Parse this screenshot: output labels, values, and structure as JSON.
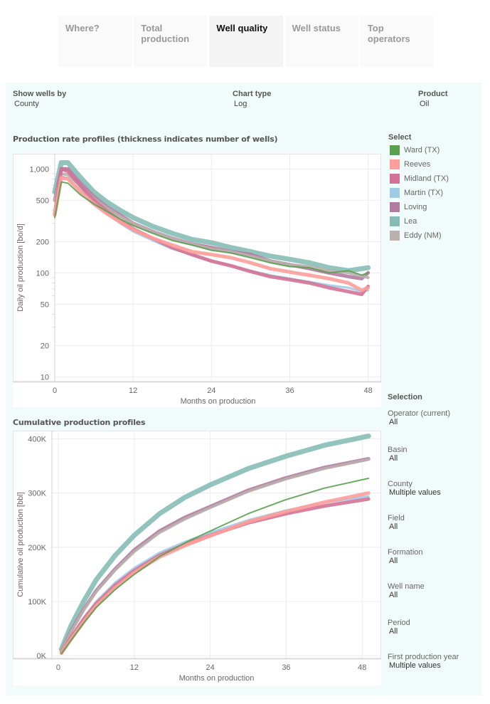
{
  "tabs": [
    {
      "label": "Where?",
      "active": false
    },
    {
      "label": "Total production",
      "active": false
    },
    {
      "label": "Well quality",
      "active": true
    },
    {
      "label": "Well status",
      "active": false
    },
    {
      "label": "Top operators",
      "active": false
    }
  ],
  "controls": {
    "show_wells_by": {
      "label": "Show wells by",
      "value": "County"
    },
    "chart_type": {
      "label": "Chart type",
      "value": "Log"
    },
    "product": {
      "label": "Product",
      "value": "Oil"
    }
  },
  "legend": {
    "title": "Select",
    "items": [
      {
        "label": "Ward (TX)",
        "color": "#59a14f"
      },
      {
        "label": "Reeves",
        "color": "#ff9d9a"
      },
      {
        "label": "Midland (TX)",
        "color": "#d37295"
      },
      {
        "label": "Martin (TX)",
        "color": "#a0cbe8"
      },
      {
        "label": "Loving",
        "color": "#b07aa1"
      },
      {
        "label": "Lea",
        "color": "#86bcb6"
      },
      {
        "label": "Eddy (NM)",
        "color": "#bab0ac"
      }
    ]
  },
  "selection": {
    "title": "Selection",
    "filters": [
      {
        "label": "Operator (current)",
        "value": "All"
      },
      {
        "label": "Basin",
        "value": "All"
      },
      {
        "label": "County",
        "value": "Multiple values"
      },
      {
        "label": "Field",
        "value": "All"
      },
      {
        "label": "Formation",
        "value": "All"
      },
      {
        "label": "Well name",
        "value": "All"
      },
      {
        "label": "Period",
        "value": "All"
      },
      {
        "label": "First production year",
        "value": "Multiple values"
      }
    ]
  },
  "chart_data": [
    {
      "type": "line",
      "title": "Production rate profiles (thickness indicates number of wells)",
      "xlabel": "Months on production",
      "ylabel": "Daily oil production [bo/d]",
      "yscale": "log",
      "xlim": [
        0,
        50
      ],
      "ylim": [
        9,
        1400
      ],
      "xticks": [
        0,
        12,
        24,
        36,
        48
      ],
      "yticks": [
        10,
        20,
        50,
        100,
        200,
        500,
        1000
      ],
      "ytick_labels": [
        "10",
        "20",
        "50",
        "100",
        "200",
        "500",
        "1,000"
      ],
      "grid": true,
      "legend": "right",
      "series": [
        {
          "name": "Lea",
          "weight": 7,
          "x": [
            0,
            1,
            2,
            4,
            6,
            8,
            10,
            12,
            15,
            18,
            21,
            24,
            27,
            30,
            33,
            36,
            39,
            42,
            45,
            48
          ],
          "y": [
            600,
            1150,
            1150,
            820,
            600,
            480,
            400,
            340,
            280,
            240,
            210,
            195,
            175,
            160,
            145,
            135,
            125,
            112,
            105,
            112
          ]
        },
        {
          "name": "Loving",
          "weight": 5,
          "x": [
            0,
            1,
            2,
            4,
            6,
            8,
            10,
            12,
            15,
            18,
            21,
            24,
            27,
            30,
            33,
            36,
            39,
            42,
            45,
            47,
            48
          ],
          "y": [
            500,
            1000,
            1000,
            720,
            540,
            430,
            360,
            300,
            250,
            215,
            190,
            175,
            160,
            150,
            130,
            120,
            110,
            100,
            92,
            88,
            100
          ]
        },
        {
          "name": "Eddy (NM)",
          "weight": 4,
          "x": [
            0,
            1,
            2,
            4,
            6,
            8,
            10,
            12,
            15,
            18,
            21,
            24,
            27,
            30,
            33,
            36,
            39,
            42,
            45,
            48
          ],
          "y": [
            500,
            900,
            880,
            680,
            520,
            420,
            350,
            300,
            250,
            215,
            190,
            170,
            160,
            145,
            130,
            120,
            115,
            105,
            100,
            90
          ]
        },
        {
          "name": "Martin (TX)",
          "weight": 3,
          "x": [
            0,
            1,
            2,
            4,
            6,
            8,
            10,
            12,
            15,
            18,
            21,
            24,
            27,
            30,
            33,
            36,
            39,
            42,
            45,
            47,
            48
          ],
          "y": [
            380,
            850,
            820,
            620,
            470,
            370,
            300,
            250,
            205,
            170,
            150,
            130,
            118,
            105,
            95,
            88,
            82,
            76,
            72,
            66,
            68
          ]
        },
        {
          "name": "Midland (TX)",
          "weight": 5,
          "x": [
            0,
            1,
            2,
            4,
            6,
            8,
            10,
            12,
            15,
            18,
            21,
            24,
            27,
            30,
            33,
            36,
            39,
            42,
            45,
            47,
            48
          ],
          "y": [
            370,
            1000,
            950,
            680,
            500,
            390,
            320,
            265,
            215,
            175,
            150,
            130,
            117,
            103,
            92,
            86,
            80,
            72,
            66,
            62,
            74
          ]
        },
        {
          "name": "Reeves",
          "weight": 5,
          "x": [
            0,
            1,
            2,
            4,
            6,
            8,
            10,
            12,
            15,
            18,
            21,
            24,
            27,
            30,
            33,
            36,
            39,
            42,
            45,
            47,
            48
          ],
          "y": [
            360,
            820,
            800,
            600,
            460,
            370,
            310,
            260,
            215,
            185,
            160,
            150,
            140,
            125,
            110,
            102,
            95,
            88,
            80,
            68,
            72
          ]
        },
        {
          "name": "Ward (TX)",
          "weight": 2,
          "x": [
            0,
            1,
            2,
            4,
            6,
            8,
            10,
            12,
            15,
            18,
            21,
            24,
            27,
            30,
            33,
            36,
            39,
            42,
            45,
            47,
            48
          ],
          "y": [
            340,
            750,
            730,
            560,
            460,
            390,
            330,
            285,
            240,
            205,
            185,
            165,
            155,
            140,
            125,
            115,
            112,
            100,
            105,
            95,
            100
          ]
        }
      ]
    },
    {
      "type": "line",
      "title": "Cumulative production profiles",
      "xlabel": "Months on production",
      "ylabel": "Cumulative oil production [bbl]",
      "xlim": [
        -1,
        51
      ],
      "ylim": [
        -5000,
        415000
      ],
      "xticks": [
        0,
        12,
        24,
        36,
        48
      ],
      "yticks": [
        0,
        100000,
        200000,
        300000,
        400000
      ],
      "ytick_labels": [
        "0K",
        "100K",
        "200K",
        "300K",
        "400K"
      ],
      "grid": true,
      "series": [
        {
          "name": "Lea",
          "weight": 7,
          "x": [
            0.5,
            2,
            4,
            6,
            9,
            12,
            16,
            20,
            24,
            30,
            36,
            42,
            49
          ],
          "y": [
            12000,
            55000,
            100000,
            140000,
            185000,
            222000,
            262000,
            292000,
            315000,
            345000,
            368000,
            388000,
            405000
          ]
        },
        {
          "name": "Loving",
          "weight": 5,
          "x": [
            0.5,
            2,
            4,
            6,
            9,
            12,
            16,
            20,
            24,
            30,
            36,
            42,
            49
          ],
          "y": [
            8000,
            45000,
            85000,
            120000,
            160000,
            195000,
            230000,
            255000,
            275000,
            305000,
            328000,
            347000,
            363000
          ]
        },
        {
          "name": "Eddy (NM)",
          "weight": 4,
          "x": [
            0.5,
            2,
            4,
            6,
            9,
            12,
            16,
            20,
            24,
            30,
            36,
            42,
            49
          ],
          "y": [
            8000,
            44000,
            84000,
            118000,
            158000,
            192000,
            227000,
            252000,
            273000,
            303000,
            326000,
            345000,
            362000
          ]
        },
        {
          "name": "Martin (TX)",
          "weight": 3,
          "x": [
            0.5,
            2,
            4,
            6,
            9,
            12,
            16,
            20,
            24,
            30,
            36,
            42,
            49
          ],
          "y": [
            6000,
            35000,
            70000,
            100000,
            135000,
            162000,
            190000,
            210000,
            227000,
            250000,
            268000,
            282000,
            294000
          ]
        },
        {
          "name": "Midland (TX)",
          "weight": 5,
          "x": [
            0.5,
            2,
            4,
            6,
            9,
            12,
            16,
            20,
            24,
            30,
            36,
            42,
            49
          ],
          "y": [
            5000,
            33000,
            67000,
            96000,
            130000,
            157000,
            185000,
            205000,
            222000,
            245000,
            262000,
            276000,
            289000
          ]
        },
        {
          "name": "Reeves",
          "weight": 5,
          "x": [
            0.5,
            2,
            4,
            6,
            9,
            12,
            16,
            20,
            24,
            30,
            36,
            42,
            49
          ],
          "y": [
            5000,
            30000,
            62000,
            92000,
            125000,
            153000,
            182000,
            203000,
            221000,
            247000,
            266000,
            283000,
            300000
          ]
        },
        {
          "name": "Ward (TX)",
          "weight": 2,
          "x": [
            0.5,
            2,
            4,
            6,
            9,
            12,
            16,
            20,
            24,
            30,
            36,
            42,
            49
          ],
          "y": [
            4000,
            28000,
            60000,
            89000,
            122000,
            150000,
            183000,
            208000,
            230000,
            262000,
            288000,
            309000,
            327000
          ]
        }
      ]
    }
  ]
}
